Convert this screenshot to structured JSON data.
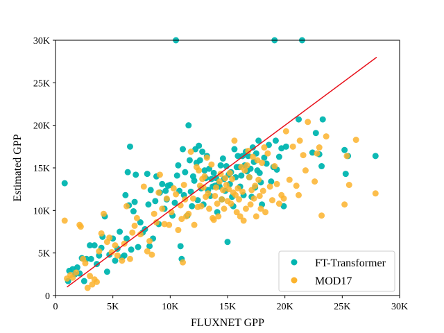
{
  "chart_data": {
    "type": "scatter",
    "xlabel": "FLUXNET GPP",
    "ylabel": "Estimated GPP",
    "xlim": [
      0,
      30000
    ],
    "ylim": [
      0,
      30000
    ],
    "x_ticks": [
      0,
      5000,
      10000,
      15000,
      20000,
      25000,
      30000
    ],
    "x_tick_labels": [
      "0",
      "5K",
      "10K",
      "15K",
      "20K",
      "25K",
      "30K"
    ],
    "y_ticks": [
      0,
      5000,
      10000,
      15000,
      20000,
      25000,
      30000
    ],
    "y_tick_labels": [
      "0",
      "5K",
      "10K",
      "15K",
      "20K",
      "25K",
      "30K"
    ],
    "grid": false,
    "legend_position": "bottom-right",
    "reference_line": {
      "x": [
        1000,
        28000
      ],
      "y": [
        1000,
        28000
      ],
      "color": "#e8121c"
    },
    "series": [
      {
        "name": "FT-Transformer",
        "color": "#00b5b0",
        "points": [
          [
            800,
            13200
          ],
          [
            1100,
            1700
          ],
          [
            1200,
            2900
          ],
          [
            1500,
            3100
          ],
          [
            1700,
            2500
          ],
          [
            1900,
            3300
          ],
          [
            2100,
            2600
          ],
          [
            2300,
            4400
          ],
          [
            2500,
            1700
          ],
          [
            2700,
            4300
          ],
          [
            3000,
            5900
          ],
          [
            3100,
            4300
          ],
          [
            3400,
            5900
          ],
          [
            3600,
            3700
          ],
          [
            3800,
            4700
          ],
          [
            4000,
            5600
          ],
          [
            4100,
            6900
          ],
          [
            4300,
            9300
          ],
          [
            4500,
            2800
          ],
          [
            4700,
            4800
          ],
          [
            5000,
            6700
          ],
          [
            5200,
            4100
          ],
          [
            5400,
            5500
          ],
          [
            5600,
            7500
          ],
          [
            5800,
            4500
          ],
          [
            6000,
            4700
          ],
          [
            6100,
            11800
          ],
          [
            6200,
            6700
          ],
          [
            6300,
            14500
          ],
          [
            6400,
            10600
          ],
          [
            6500,
            17500
          ],
          [
            6600,
            5400
          ],
          [
            6800,
            9900
          ],
          [
            6900,
            11000
          ],
          [
            7000,
            14200
          ],
          [
            7200,
            5700
          ],
          [
            7400,
            8600
          ],
          [
            7600,
            7400
          ],
          [
            7800,
            7800
          ],
          [
            8000,
            14300
          ],
          [
            8100,
            10700
          ],
          [
            8200,
            5800
          ],
          [
            8300,
            12400
          ],
          [
            8500,
            6700
          ],
          [
            8700,
            11100
          ],
          [
            8800,
            14000
          ],
          [
            9000,
            8400
          ],
          [
            9100,
            12100
          ],
          [
            9300,
            13100
          ],
          [
            9500,
            10200
          ],
          [
            9600,
            12300
          ],
          [
            9700,
            11300
          ],
          [
            9800,
            12900
          ],
          [
            10000,
            13000
          ],
          [
            10200,
            9400
          ],
          [
            10400,
            10900
          ],
          [
            10500,
            30000
          ],
          [
            10600,
            14100
          ],
          [
            10700,
            15300
          ],
          [
            10800,
            12300
          ],
          [
            10900,
            5800
          ],
          [
            11000,
            4300
          ],
          [
            11100,
            17200
          ],
          [
            11200,
            11800
          ],
          [
            11300,
            14500
          ],
          [
            11500,
            9400
          ],
          [
            11600,
            20000
          ],
          [
            11700,
            15900
          ],
          [
            11800,
            12200
          ],
          [
            11900,
            10500
          ],
          [
            12000,
            14000
          ],
          [
            12100,
            13500
          ],
          [
            12200,
            17200
          ],
          [
            12300,
            15600
          ],
          [
            12400,
            11200
          ],
          [
            12500,
            17600
          ],
          [
            12600,
            15900
          ],
          [
            12700,
            12600
          ],
          [
            12800,
            16900
          ],
          [
            12900,
            10700
          ],
          [
            13000,
            14700
          ],
          [
            13100,
            13800
          ],
          [
            13200,
            16400
          ],
          [
            13300,
            12400
          ],
          [
            13400,
            14900
          ],
          [
            13500,
            11700
          ],
          [
            13600,
            13700
          ],
          [
            13700,
            12800
          ],
          [
            13800,
            14400
          ],
          [
            13900,
            12900
          ],
          [
            14000,
            13800
          ],
          [
            14100,
            9800
          ],
          [
            14200,
            13100
          ],
          [
            14300,
            12800
          ],
          [
            14400,
            15300
          ],
          [
            14500,
            11300
          ],
          [
            14600,
            16100
          ],
          [
            14700,
            13700
          ],
          [
            14800,
            12300
          ],
          [
            14900,
            15200
          ],
          [
            15000,
            6300
          ],
          [
            15100,
            14200
          ],
          [
            15200,
            13100
          ],
          [
            15300,
            14500
          ],
          [
            15400,
            11600
          ],
          [
            15500,
            10500
          ],
          [
            15600,
            17200
          ],
          [
            15700,
            13900
          ],
          [
            15800,
            15100
          ],
          [
            15900,
            16400
          ],
          [
            16000,
            15100
          ],
          [
            16100,
            12800
          ],
          [
            16200,
            14100
          ],
          [
            16300,
            16400
          ],
          [
            16400,
            11800
          ],
          [
            16500,
            15300
          ],
          [
            16600,
            16900
          ],
          [
            16700,
            14600
          ],
          [
            16800,
            16400
          ],
          [
            16900,
            13900
          ],
          [
            17000,
            14900
          ],
          [
            17100,
            11600
          ],
          [
            17200,
            17400
          ],
          [
            17300,
            15700
          ],
          [
            17400,
            12700
          ],
          [
            17500,
            16700
          ],
          [
            17600,
            14700
          ],
          [
            17700,
            18200
          ],
          [
            17800,
            14400
          ],
          [
            17900,
            13300
          ],
          [
            18000,
            10700
          ],
          [
            18200,
            16200
          ],
          [
            18400,
            15500
          ],
          [
            18600,
            17700
          ],
          [
            18800,
            13400
          ],
          [
            19000,
            15100
          ],
          [
            19100,
            30000
          ],
          [
            19200,
            18200
          ],
          [
            19300,
            14800
          ],
          [
            19500,
            16300
          ],
          [
            19700,
            17300
          ],
          [
            19900,
            10500
          ],
          [
            20100,
            17500
          ],
          [
            21200,
            20700
          ],
          [
            21500,
            30000
          ],
          [
            22400,
            16800
          ],
          [
            22700,
            19100
          ],
          [
            23000,
            16600
          ],
          [
            23200,
            15200
          ],
          [
            23300,
            20700
          ],
          [
            25200,
            17100
          ],
          [
            25300,
            14300
          ],
          [
            25500,
            16400
          ],
          [
            27900,
            16400
          ]
        ]
      },
      {
        "name": "MOD17",
        "color": "#fbb32d",
        "points": [
          [
            800,
            8800
          ],
          [
            1000,
            2000
          ],
          [
            1300,
            2400
          ],
          [
            1500,
            2100
          ],
          [
            1800,
            2700
          ],
          [
            2100,
            8300
          ],
          [
            2200,
            8100
          ],
          [
            2400,
            4300
          ],
          [
            2600,
            3800
          ],
          [
            2800,
            900
          ],
          [
            3000,
            2300
          ],
          [
            3200,
            1300
          ],
          [
            3400,
            1900
          ],
          [
            3600,
            1600
          ],
          [
            3800,
            5200
          ],
          [
            4000,
            7300
          ],
          [
            4200,
            9600
          ],
          [
            4500,
            6300
          ],
          [
            4700,
            6800
          ],
          [
            4900,
            5100
          ],
          [
            5200,
            5900
          ],
          [
            5400,
            4700
          ],
          [
            5800,
            4100
          ],
          [
            6000,
            6100
          ],
          [
            6200,
            10500
          ],
          [
            6500,
            4300
          ],
          [
            6700,
            7400
          ],
          [
            6900,
            8200
          ],
          [
            7100,
            9100
          ],
          [
            7400,
            7200
          ],
          [
            7700,
            12800
          ],
          [
            8000,
            5200
          ],
          [
            8200,
            6400
          ],
          [
            8400,
            4800
          ],
          [
            8600,
            9600
          ],
          [
            8800,
            8600
          ],
          [
            9000,
            12100
          ],
          [
            9100,
            14200
          ],
          [
            9300,
            10200
          ],
          [
            9500,
            8400
          ],
          [
            9700,
            11400
          ],
          [
            9900,
            8300
          ],
          [
            10100,
            9800
          ],
          [
            10300,
            12600
          ],
          [
            10500,
            11900
          ],
          [
            10700,
            7700
          ],
          [
            10900,
            10600
          ],
          [
            11000,
            9000
          ],
          [
            11100,
            3900
          ],
          [
            11200,
            13000
          ],
          [
            11300,
            11300
          ],
          [
            11400,
            9300
          ],
          [
            11600,
            9600
          ],
          [
            11800,
            16900
          ],
          [
            12000,
            11400
          ],
          [
            12100,
            8300
          ],
          [
            12300,
            15100
          ],
          [
            12400,
            10400
          ],
          [
            12500,
            14700
          ],
          [
            12600,
            12900
          ],
          [
            12700,
            10500
          ],
          [
            12800,
            13700
          ],
          [
            12900,
            12700
          ],
          [
            13000,
            14000
          ],
          [
            13100,
            11600
          ],
          [
            13200,
            16200
          ],
          [
            13300,
            12000
          ],
          [
            13400,
            10200
          ],
          [
            13600,
            15400
          ],
          [
            13700,
            9100
          ],
          [
            13800,
            8900
          ],
          [
            13900,
            11700
          ],
          [
            14000,
            12700
          ],
          [
            14100,
            10800
          ],
          [
            14200,
            9300
          ],
          [
            14300,
            13400
          ],
          [
            14400,
            14300
          ],
          [
            14500,
            11300
          ],
          [
            14600,
            12400
          ],
          [
            14700,
            10200
          ],
          [
            14800,
            13800
          ],
          [
            14900,
            13000
          ],
          [
            15000,
            11100
          ],
          [
            15100,
            12500
          ],
          [
            15200,
            14400
          ],
          [
            15300,
            10800
          ],
          [
            15400,
            13700
          ],
          [
            15500,
            12100
          ],
          [
            15600,
            18200
          ],
          [
            15700,
            11800
          ],
          [
            15800,
            9800
          ],
          [
            15900,
            12600
          ],
          [
            16000,
            11300
          ],
          [
            16100,
            9300
          ],
          [
            16200,
            15100
          ],
          [
            16300,
            12200
          ],
          [
            16400,
            8800
          ],
          [
            16500,
            14700
          ],
          [
            16600,
            10200
          ],
          [
            16700,
            15300
          ],
          [
            16800,
            17000
          ],
          [
            16900,
            13900
          ],
          [
            17000,
            10700
          ],
          [
            17100,
            12400
          ],
          [
            17200,
            16300
          ],
          [
            17300,
            11400
          ],
          [
            17400,
            12900
          ],
          [
            17500,
            9300
          ],
          [
            17600,
            15900
          ],
          [
            17700,
            13600
          ],
          [
            17800,
            11700
          ],
          [
            17900,
            10200
          ],
          [
            18000,
            15600
          ],
          [
            18100,
            12300
          ],
          [
            18200,
            17400
          ],
          [
            18300,
            9800
          ],
          [
            18500,
            16700
          ],
          [
            18700,
            12800
          ],
          [
            18900,
            11200
          ],
          [
            19100,
            15200
          ],
          [
            19300,
            13100
          ],
          [
            19500,
            10800
          ],
          [
            19700,
            11800
          ],
          [
            19900,
            11400
          ],
          [
            20100,
            19300
          ],
          [
            20400,
            13600
          ],
          [
            20700,
            17500
          ],
          [
            21000,
            12900
          ],
          [
            21200,
            11800
          ],
          [
            21300,
            18200
          ],
          [
            21600,
            16500
          ],
          [
            21800,
            14700
          ],
          [
            22000,
            20400
          ],
          [
            22600,
            13400
          ],
          [
            22800,
            16700
          ],
          [
            23000,
            17400
          ],
          [
            23200,
            9400
          ],
          [
            23600,
            18700
          ],
          [
            25200,
            10700
          ],
          [
            25400,
            16400
          ],
          [
            25600,
            13000
          ],
          [
            26200,
            18300
          ],
          [
            27900,
            12000
          ]
        ]
      }
    ]
  }
}
